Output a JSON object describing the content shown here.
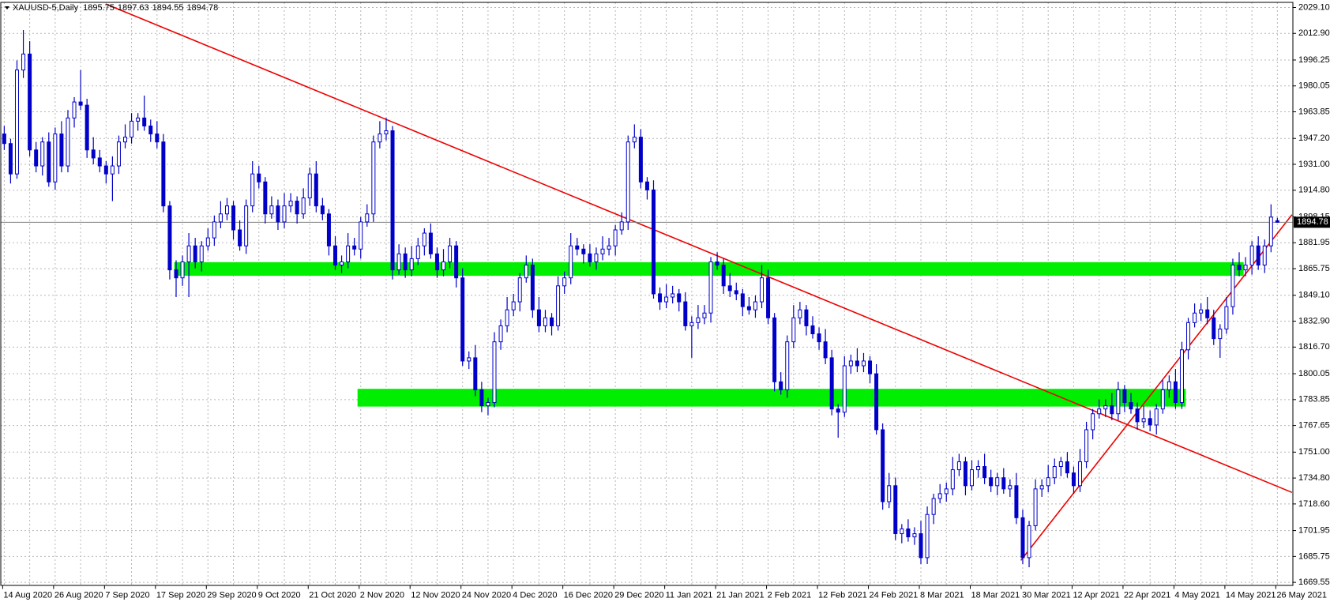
{
  "chart_data": {
    "type": "candlestick",
    "symbol": "XAUUSD-5,Daily",
    "last_price": 1894.78,
    "bull_color": "#ffffff",
    "bear_color": "#0000c8",
    "outline_color": "#0000c8",
    "zone_color": "#00ee00",
    "trend_color": "#ee0000",
    "grid": true,
    "ylim": [
      1667.4,
      2032.3
    ],
    "yticks": [
      {
        "value": 2029.1,
        "label": "2029.10"
      },
      {
        "value": 2012.9,
        "label": "2012.90"
      },
      {
        "value": 1996.25,
        "label": "1996.25"
      },
      {
        "value": 1980.05,
        "label": "1980.05"
      },
      {
        "value": 1963.85,
        "label": "1963.85"
      },
      {
        "value": 1947.2,
        "label": "1947.20"
      },
      {
        "value": 1931,
        "label": "1931.00"
      },
      {
        "value": 1914.8,
        "label": "1914.80"
      },
      {
        "value": 1898.15,
        "label": "1898.15"
      },
      {
        "value": 1881.95,
        "label": "1881.95"
      },
      {
        "value": 1865.75,
        "label": "1865.75"
      },
      {
        "value": 1849.1,
        "label": "1849.10"
      },
      {
        "value": 1832.9,
        "label": "1832.90"
      },
      {
        "value": 1816.7,
        "label": "1816.70"
      },
      {
        "value": 1800.05,
        "label": "1800.05"
      },
      {
        "value": 1783.85,
        "label": "1783.85"
      },
      {
        "value": 1767.65,
        "label": "1767.65"
      },
      {
        "value": 1751,
        "label": "1751.00"
      },
      {
        "value": 1734.8,
        "label": "1734.80"
      },
      {
        "value": 1718.6,
        "label": "1718.60"
      },
      {
        "value": 1701.95,
        "label": "1701.95"
      },
      {
        "value": 1685.75,
        "label": "1685.75"
      },
      {
        "value": 1669.55,
        "label": "1669.55"
      }
    ],
    "categories": [
      "14 Aug 2020",
      null,
      null,
      null,
      null,
      null,
      null,
      null,
      "26 Aug 2020",
      null,
      null,
      null,
      null,
      null,
      null,
      null,
      "7 Sep 2020",
      null,
      null,
      null,
      null,
      null,
      null,
      null,
      "17 Sep 2020",
      null,
      null,
      null,
      null,
      null,
      null,
      null,
      "29 Sep 2020",
      null,
      null,
      null,
      null,
      null,
      null,
      null,
      "9 Oct 2020",
      null,
      null,
      null,
      null,
      null,
      null,
      null,
      "21 Oct 2020",
      null,
      null,
      null,
      null,
      null,
      null,
      null,
      "2 Nov 2020",
      null,
      null,
      null,
      null,
      null,
      null,
      null,
      "12 Nov 2020",
      null,
      null,
      null,
      null,
      null,
      null,
      null,
      "24 Nov 2020",
      null,
      null,
      null,
      null,
      null,
      null,
      null,
      "4 Dec 2020",
      null,
      null,
      null,
      null,
      null,
      null,
      null,
      "16 Dec 2020",
      null,
      null,
      null,
      null,
      null,
      null,
      null,
      "29 Dec 2020",
      null,
      null,
      null,
      null,
      null,
      null,
      null,
      "11 Jan 2021",
      null,
      null,
      null,
      null,
      null,
      null,
      null,
      "21 Jan 2021",
      null,
      null,
      null,
      null,
      null,
      null,
      null,
      "2 Feb 2021",
      null,
      null,
      null,
      null,
      null,
      null,
      null,
      "12 Feb 2021",
      null,
      null,
      null,
      null,
      null,
      null,
      null,
      "24 Feb 2021",
      null,
      null,
      null,
      null,
      null,
      null,
      null,
      "8 Mar 2021",
      null,
      null,
      null,
      null,
      null,
      null,
      null,
      "18 Mar 2021",
      null,
      null,
      null,
      null,
      null,
      null,
      null,
      "30 Mar 2021",
      null,
      null,
      null,
      null,
      null,
      null,
      null,
      "12 Apr 2021",
      null,
      null,
      null,
      null,
      null,
      null,
      null,
      "22 Apr 2021",
      null,
      null,
      null,
      null,
      null,
      null,
      null,
      "4 May 2021",
      null,
      null,
      null,
      null,
      null,
      null,
      null,
      "14 May 2021",
      null,
      null,
      null,
      null,
      null,
      null,
      null,
      "26 May 2021"
    ],
    "ohlc": [
      [
        1950,
        1955,
        1940,
        1944
      ],
      [
        1944,
        1947,
        1919,
        1925
      ],
      [
        1925,
        1996,
        1922,
        1990
      ],
      [
        1990,
        2015,
        1985,
        2000
      ],
      [
        2000,
        2008,
        1936,
        1940
      ],
      [
        1940,
        1945,
        1926,
        1930
      ],
      [
        1930,
        1948,
        1924,
        1945
      ],
      [
        1945,
        1951,
        1917,
        1920
      ],
      [
        1920,
        1954,
        1915,
        1950
      ],
      [
        1950,
        1958,
        1926,
        1930
      ],
      [
        1930,
        1965,
        1926,
        1960
      ],
      [
        1960,
        1973,
        1954,
        1970
      ],
      [
        1970,
        1990,
        1965,
        1968
      ],
      [
        1968,
        1972,
        1935,
        1940
      ],
      [
        1940,
        1948,
        1931,
        1935
      ],
      [
        1935,
        1940,
        1926,
        1930
      ],
      [
        1930,
        1933,
        1919,
        1925
      ],
      [
        1925,
        1936,
        1908,
        1930
      ],
      [
        1930,
        1949,
        1925,
        1945
      ],
      [
        1945,
        1956,
        1941,
        1948
      ],
      [
        1948,
        1963,
        1944,
        1958
      ],
      [
        1958,
        1963,
        1952,
        1960
      ],
      [
        1960,
        1974,
        1952,
        1955
      ],
      [
        1955,
        1959,
        1945,
        1950
      ],
      [
        1950,
        1958,
        1941,
        1945
      ],
      [
        1945,
        1950,
        1901,
        1905
      ],
      [
        1905,
        1908,
        1859,
        1865
      ],
      [
        1865,
        1871,
        1848,
        1860
      ],
      [
        1860,
        1874,
        1855,
        1870
      ],
      [
        1870,
        1888,
        1848,
        1880
      ],
      [
        1880,
        1885,
        1866,
        1870
      ],
      [
        1870,
        1883,
        1864,
        1880
      ],
      [
        1880,
        1891,
        1877,
        1885
      ],
      [
        1885,
        1899,
        1880,
        1895
      ],
      [
        1895,
        1908,
        1891,
        1900
      ],
      [
        1900,
        1910,
        1896,
        1905
      ],
      [
        1905,
        1908,
        1884,
        1890
      ],
      [
        1890,
        1896,
        1877,
        1880
      ],
      [
        1880,
        1909,
        1875,
        1905
      ],
      [
        1905,
        1933,
        1901,
        1925
      ],
      [
        1925,
        1930,
        1916,
        1920
      ],
      [
        1920,
        1923,
        1894,
        1900
      ],
      [
        1900,
        1911,
        1897,
        1905
      ],
      [
        1905,
        1909,
        1890,
        1895
      ],
      [
        1895,
        1913,
        1891,
        1905
      ],
      [
        1905,
        1913,
        1901,
        1908
      ],
      [
        1908,
        1911,
        1894,
        1900
      ],
      [
        1900,
        1916,
        1897,
        1910
      ],
      [
        1910,
        1929,
        1905,
        1925
      ],
      [
        1925,
        1933,
        1901,
        1905
      ],
      [
        1905,
        1910,
        1896,
        1900
      ],
      [
        1900,
        1903,
        1874,
        1880
      ],
      [
        1880,
        1886,
        1865,
        1868
      ],
      [
        1868,
        1874,
        1863,
        1870
      ],
      [
        1870,
        1888,
        1866,
        1880
      ],
      [
        1880,
        1885,
        1874,
        1878
      ],
      [
        1878,
        1898,
        1872,
        1895
      ],
      [
        1895,
        1906,
        1892,
        1900
      ],
      [
        1900,
        1949,
        1895,
        1945
      ],
      [
        1945,
        1958,
        1941,
        1950
      ],
      [
        1950,
        1960,
        1946,
        1952
      ],
      [
        1952,
        1955,
        1859,
        1865
      ],
      [
        1865,
        1881,
        1862,
        1875
      ],
      [
        1875,
        1879,
        1860,
        1865
      ],
      [
        1865,
        1880,
        1861,
        1872
      ],
      [
        1872,
        1885,
        1868,
        1880
      ],
      [
        1880,
        1891,
        1874,
        1888
      ],
      [
        1888,
        1894,
        1872,
        1875
      ],
      [
        1875,
        1879,
        1860,
        1865
      ],
      [
        1865,
        1878,
        1861,
        1870
      ],
      [
        1870,
        1885,
        1866,
        1880
      ],
      [
        1880,
        1883,
        1854,
        1860
      ],
      [
        1860,
        1866,
        1805,
        1808
      ],
      [
        1808,
        1814,
        1803,
        1810
      ],
      [
        1810,
        1818,
        1786,
        1790
      ],
      [
        1790,
        1795,
        1776,
        1780
      ],
      [
        1780,
        1785,
        1774,
        1782
      ],
      [
        1782,
        1826,
        1779,
        1820
      ],
      [
        1820,
        1834,
        1815,
        1830
      ],
      [
        1830,
        1848,
        1826,
        1840
      ],
      [
        1840,
        1850,
        1836,
        1845
      ],
      [
        1845,
        1863,
        1839,
        1860
      ],
      [
        1860,
        1874,
        1857,
        1868
      ],
      [
        1868,
        1872,
        1835,
        1840
      ],
      [
        1840,
        1848,
        1826,
        1830
      ],
      [
        1830,
        1840,
        1826,
        1835
      ],
      [
        1835,
        1838,
        1824,
        1830
      ],
      [
        1830,
        1861,
        1827,
        1855
      ],
      [
        1855,
        1864,
        1850,
        1860
      ],
      [
        1860,
        1888,
        1856,
        1880
      ],
      [
        1880,
        1885,
        1874,
        1878
      ],
      [
        1878,
        1881,
        1869,
        1875
      ],
      [
        1875,
        1881,
        1867,
        1870
      ],
      [
        1870,
        1879,
        1865,
        1875
      ],
      [
        1875,
        1886,
        1871,
        1878
      ],
      [
        1878,
        1885,
        1874,
        1880
      ],
      [
        1880,
        1893,
        1874,
        1890
      ],
      [
        1890,
        1901,
        1887,
        1895
      ],
      [
        1895,
        1949,
        1890,
        1945
      ],
      [
        1945,
        1956,
        1941,
        1948
      ],
      [
        1948,
        1953,
        1916,
        1920
      ],
      [
        1920,
        1923,
        1909,
        1915
      ],
      [
        1915,
        1921,
        1847,
        1850
      ],
      [
        1850,
        1854,
        1840,
        1845
      ],
      [
        1845,
        1856,
        1841,
        1848
      ],
      [
        1848,
        1855,
        1844,
        1850
      ],
      [
        1850,
        1853,
        1839,
        1845
      ],
      [
        1845,
        1851,
        1827,
        1830
      ],
      [
        1830,
        1836,
        1810,
        1832
      ],
      [
        1832,
        1843,
        1828,
        1835
      ],
      [
        1835,
        1843,
        1831,
        1838
      ],
      [
        1838,
        1873,
        1832,
        1870
      ],
      [
        1870,
        1876,
        1865,
        1868
      ],
      [
        1868,
        1872,
        1850,
        1855
      ],
      [
        1855,
        1863,
        1848,
        1852
      ],
      [
        1852,
        1857,
        1846,
        1850
      ],
      [
        1850,
        1853,
        1836,
        1842
      ],
      [
        1842,
        1848,
        1837,
        1840
      ],
      [
        1840,
        1849,
        1835,
        1845
      ],
      [
        1845,
        1868,
        1841,
        1860
      ],
      [
        1860,
        1865,
        1831,
        1835
      ],
      [
        1835,
        1838,
        1789,
        1795
      ],
      [
        1795,
        1801,
        1787,
        1790
      ],
      [
        1790,
        1824,
        1785,
        1820
      ],
      [
        1820,
        1843,
        1816,
        1835
      ],
      [
        1835,
        1845,
        1831,
        1840
      ],
      [
        1840,
        1843,
        1824,
        1830
      ],
      [
        1830,
        1836,
        1822,
        1825
      ],
      [
        1825,
        1829,
        1815,
        1820
      ],
      [
        1820,
        1828,
        1806,
        1810
      ],
      [
        1810,
        1815,
        1774,
        1778
      ],
      [
        1778,
        1781,
        1760,
        1776
      ],
      [
        1776,
        1811,
        1773,
        1805
      ],
      [
        1805,
        1812,
        1800,
        1808
      ],
      [
        1808,
        1816,
        1801,
        1805
      ],
      [
        1805,
        1813,
        1801,
        1808
      ],
      [
        1808,
        1811,
        1794,
        1800
      ],
      [
        1800,
        1806,
        1762,
        1765
      ],
      [
        1765,
        1769,
        1715,
        1720
      ],
      [
        1720,
        1738,
        1716,
        1730
      ],
      [
        1730,
        1735,
        1696,
        1700
      ],
      [
        1700,
        1706,
        1694,
        1703
      ],
      [
        1703,
        1709,
        1695,
        1698
      ],
      [
        1698,
        1704,
        1693,
        1700
      ],
      [
        1700,
        1708,
        1681,
        1685
      ],
      [
        1685,
        1717,
        1681,
        1712
      ],
      [
        1712,
        1725,
        1706,
        1722
      ],
      [
        1722,
        1731,
        1719,
        1725
      ],
      [
        1725,
        1732,
        1720,
        1728
      ],
      [
        1728,
        1748,
        1724,
        1740
      ],
      [
        1740,
        1750,
        1736,
        1745
      ],
      [
        1745,
        1748,
        1724,
        1730
      ],
      [
        1730,
        1746,
        1727,
        1740
      ],
      [
        1740,
        1746,
        1735,
        1742
      ],
      [
        1742,
        1750,
        1731,
        1735
      ],
      [
        1735,
        1740,
        1726,
        1730
      ],
      [
        1730,
        1738,
        1724,
        1735
      ],
      [
        1735,
        1741,
        1725,
        1728
      ],
      [
        1728,
        1734,
        1723,
        1730
      ],
      [
        1730,
        1738,
        1706,
        1710
      ],
      [
        1710,
        1715,
        1681,
        1685
      ],
      [
        1685,
        1708,
        1679,
        1705
      ],
      [
        1705,
        1734,
        1702,
        1728
      ],
      [
        1728,
        1734,
        1723,
        1730
      ],
      [
        1730,
        1743,
        1726,
        1735
      ],
      [
        1735,
        1747,
        1731,
        1742
      ],
      [
        1742,
        1748,
        1736,
        1745
      ],
      [
        1745,
        1751,
        1735,
        1738
      ],
      [
        1738,
        1742,
        1725,
        1730
      ],
      [
        1730,
        1753,
        1726,
        1745
      ],
      [
        1745,
        1770,
        1741,
        1765
      ],
      [
        1765,
        1778,
        1759,
        1775
      ],
      [
        1775,
        1784,
        1772,
        1778
      ],
      [
        1778,
        1784,
        1773,
        1780
      ],
      [
        1780,
        1788,
        1771,
        1775
      ],
      [
        1775,
        1795,
        1771,
        1790
      ],
      [
        1790,
        1793,
        1776,
        1782
      ],
      [
        1782,
        1788,
        1775,
        1778
      ],
      [
        1778,
        1782,
        1765,
        1770
      ],
      [
        1770,
        1780,
        1766,
        1772
      ],
      [
        1772,
        1777,
        1764,
        1768
      ],
      [
        1768,
        1781,
        1762,
        1778
      ],
      [
        1778,
        1796,
        1775,
        1790
      ],
      [
        1790,
        1799,
        1785,
        1795
      ],
      [
        1795,
        1803,
        1778,
        1782
      ],
      [
        1782,
        1820,
        1778,
        1815
      ],
      [
        1815,
        1835,
        1809,
        1832
      ],
      [
        1832,
        1844,
        1829,
        1838
      ],
      [
        1838,
        1844,
        1833,
        1840
      ],
      [
        1840,
        1848,
        1831,
        1835
      ],
      [
        1835,
        1840,
        1818,
        1822
      ],
      [
        1822,
        1831,
        1810,
        1828
      ],
      [
        1828,
        1848,
        1825,
        1842
      ],
      [
        1842,
        1872,
        1837,
        1868
      ],
      [
        1868,
        1876,
        1861,
        1865
      ],
      [
        1865,
        1873,
        1861,
        1868
      ],
      [
        1868,
        1883,
        1862,
        1880
      ],
      [
        1880,
        1886,
        1865,
        1868
      ],
      [
        1868,
        1884,
        1863,
        1880
      ],
      [
        1880,
        1906,
        1876,
        1898
      ],
      [
        1895.75,
        1897.63,
        1894.55,
        1894.78
      ]
    ],
    "zones": [
      {
        "x": [
          26.7,
          194.7
        ],
        "low": 1861.3,
        "high": 1869.8
      },
      {
        "x": [
          55.5,
          185.6
        ],
        "low": 1779.5,
        "high": 1790.6
      }
    ],
    "trendlines": [
      {
        "points": [
          [
            16,
            2031.2
          ],
          [
            202.3,
            1725.8
          ]
        ]
      },
      {
        "points": [
          [
            159.7,
            1683.3
          ],
          [
            202.3,
            1899.5
          ]
        ]
      }
    ]
  }
}
